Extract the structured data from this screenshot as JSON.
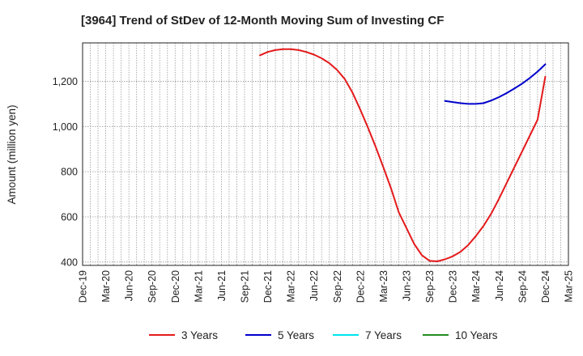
{
  "chart_data": {
    "type": "line",
    "title": "[3964]  Trend of StDev of 12-Month Moving Sum of Investing CF",
    "ylabel": "Amount (million yen)",
    "xlabel": "",
    "x_ticks": [
      "Dec-19",
      "Mar-20",
      "Jun-20",
      "Sep-20",
      "Dec-20",
      "Mar-21",
      "Jun-21",
      "Sep-21",
      "Dec-21",
      "Mar-22",
      "Jun-22",
      "Sep-22",
      "Dec-22",
      "Mar-23",
      "Jun-23",
      "Sep-23",
      "Dec-23",
      "Mar-24",
      "Jun-24",
      "Sep-24",
      "Dec-24",
      "Mar-25"
    ],
    "y_ticks": [
      400,
      600,
      800,
      1000,
      1200
    ],
    "y_tick_labels": [
      "400",
      "600",
      "800",
      "1,000",
      "1,200"
    ],
    "ylim": [
      385,
      1370
    ],
    "grid": true,
    "legend_position": "bottom",
    "series": [
      {
        "name": "3 Years",
        "color": "#e41a1c",
        "points": [
          [
            "Nov-21",
            1315
          ],
          [
            "Dec-21",
            1330
          ],
          [
            "Jan-22",
            1338
          ],
          [
            "Feb-22",
            1342
          ],
          [
            "Mar-22",
            1342
          ],
          [
            "Apr-22",
            1338
          ],
          [
            "May-22",
            1330
          ],
          [
            "Jun-22",
            1318
          ],
          [
            "Jul-22",
            1302
          ],
          [
            "Aug-22",
            1280
          ],
          [
            "Sep-22",
            1250
          ],
          [
            "Oct-22",
            1210
          ],
          [
            "Nov-22",
            1150
          ],
          [
            "Dec-22",
            1075
          ],
          [
            "Jan-23",
            995
          ],
          [
            "Feb-23",
            910
          ],
          [
            "Mar-23",
            820
          ],
          [
            "Apr-23",
            725
          ],
          [
            "May-23",
            620
          ],
          [
            "Jun-23",
            550
          ],
          [
            "Jul-23",
            480
          ],
          [
            "Aug-23",
            430
          ],
          [
            "Sep-23",
            405
          ],
          [
            "Oct-23",
            403
          ],
          [
            "Nov-23",
            412
          ],
          [
            "Dec-23",
            425
          ],
          [
            "Jan-24",
            445
          ],
          [
            "Feb-24",
            475
          ],
          [
            "Mar-24",
            515
          ],
          [
            "Apr-24",
            560
          ],
          [
            "May-24",
            615
          ],
          [
            "Jun-24",
            680
          ],
          [
            "Jul-24",
            750
          ],
          [
            "Aug-24",
            820
          ],
          [
            "Sep-24",
            890
          ],
          [
            "Oct-24",
            960
          ],
          [
            "Nov-24",
            1030
          ],
          [
            "Dec-24",
            1220
          ]
        ]
      },
      {
        "name": "5 Years",
        "color": "#0000cc",
        "points": [
          [
            "Nov-23",
            1113
          ],
          [
            "Dec-23",
            1108
          ],
          [
            "Jan-24",
            1103
          ],
          [
            "Feb-24",
            1100
          ],
          [
            "Mar-24",
            1100
          ],
          [
            "Apr-24",
            1103
          ],
          [
            "May-24",
            1115
          ],
          [
            "Jun-24",
            1130
          ],
          [
            "Jul-24",
            1148
          ],
          [
            "Aug-24",
            1168
          ],
          [
            "Sep-24",
            1190
          ],
          [
            "Oct-24",
            1215
          ],
          [
            "Nov-24",
            1243
          ],
          [
            "Dec-24",
            1275
          ]
        ]
      },
      {
        "name": "7 Years",
        "color": "#00e5ee",
        "points": []
      },
      {
        "name": "10 Years",
        "color": "#228b22",
        "points": []
      }
    ]
  }
}
